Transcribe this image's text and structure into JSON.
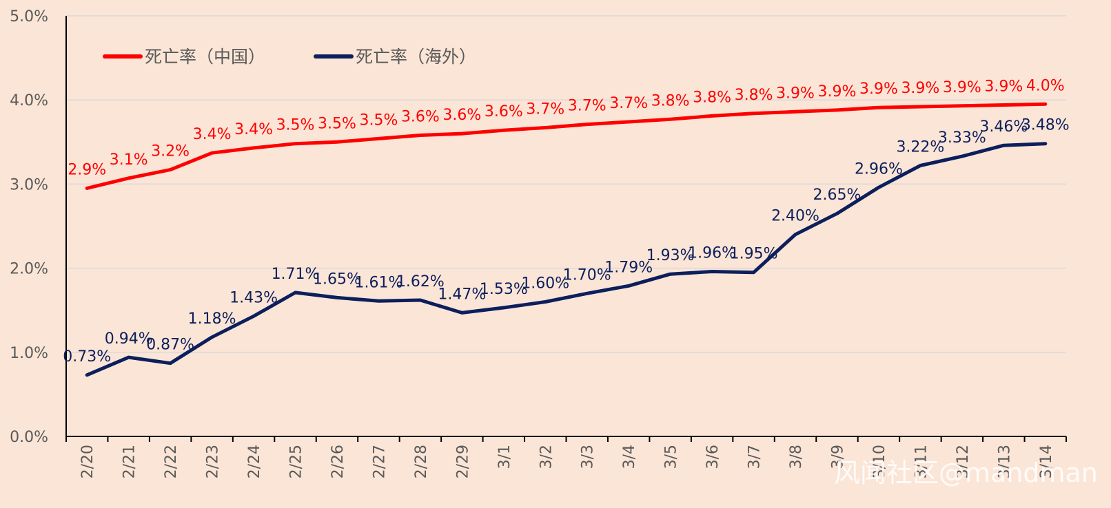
{
  "chart_data": {
    "type": "line",
    "categories": [
      "2/20",
      "2/21",
      "2/22",
      "2/23",
      "2/24",
      "2/25",
      "2/26",
      "2/27",
      "2/28",
      "2/29",
      "3/1",
      "3/2",
      "3/3",
      "3/4",
      "3/5",
      "3/6",
      "3/7",
      "3/8",
      "3/9",
      "3/10",
      "3/11",
      "3/12",
      "3/13",
      "3/14"
    ],
    "ylim": [
      0,
      5
    ],
    "yticks": [
      "0.0%",
      "1.0%",
      "2.0%",
      "3.0%",
      "4.0%",
      "5.0%"
    ],
    "grid": true,
    "legend_position": "top-left",
    "series": [
      {
        "name": "死亡率（中国）",
        "color": "#ff0000",
        "values": [
          2.95,
          3.07,
          3.17,
          3.37,
          3.43,
          3.48,
          3.5,
          3.54,
          3.58,
          3.6,
          3.64,
          3.67,
          3.71,
          3.74,
          3.77,
          3.81,
          3.84,
          3.86,
          3.88,
          3.91,
          3.92,
          3.93,
          3.94,
          3.95
        ],
        "labels": [
          "2.9%",
          "3.1%",
          "3.2%",
          "3.4%",
          "3.4%",
          "3.5%",
          "3.5%",
          "3.5%",
          "3.6%",
          "3.6%",
          "3.6%",
          "3.7%",
          "3.7%",
          "3.7%",
          "3.8%",
          "3.8%",
          "3.8%",
          "3.9%",
          "3.9%",
          "3.9%",
          "3.9%",
          "3.9%",
          "3.9%",
          "4.0%"
        ]
      },
      {
        "name": "死亡率（海外）",
        "color": "#0c1f5c",
        "values": [
          0.73,
          0.94,
          0.87,
          1.18,
          1.43,
          1.71,
          1.65,
          1.61,
          1.62,
          1.47,
          1.53,
          1.6,
          1.7,
          1.79,
          1.93,
          1.96,
          1.95,
          2.4,
          2.65,
          2.96,
          3.22,
          3.33,
          3.46,
          3.48
        ],
        "labels": [
          "0.73%",
          "0.94%",
          "0.87%",
          "1.18%",
          "1.43%",
          "1.71%",
          "1.65%",
          "1.61%",
          "1.62%",
          "1.47%",
          "1.53%",
          "1.60%",
          "1.70%",
          "1.79%",
          "1.93%",
          "1.96%",
          "1.95%",
          "2.40%",
          "2.65%",
          "2.96%",
          "3.22%",
          "3.33%",
          "3.46%",
          "3.48%"
        ]
      }
    ]
  },
  "watermark": "风闻社区@mandman"
}
